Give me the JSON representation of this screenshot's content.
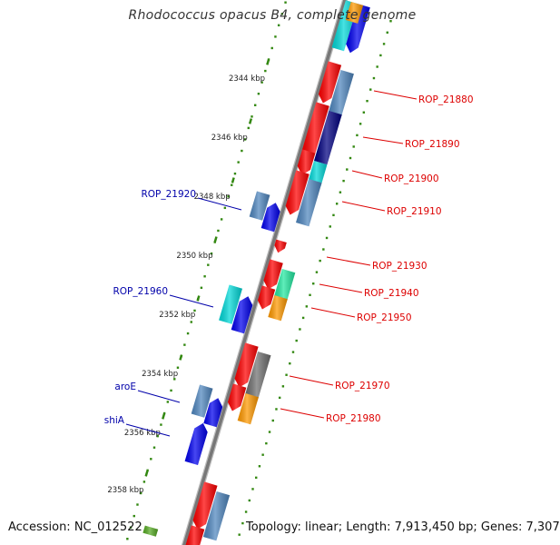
{
  "title": "Rhodococcus opacus B4, complete genome",
  "footer": {
    "accession": "Accession: NC_012522",
    "topology": "Topology: linear; Length: 7,913,450 bp; Genes: 7,307"
  },
  "scale": {
    "ticks": [
      {
        "label": "2344 kbp",
        "kbp": 2344
      },
      {
        "label": "2346 kbp",
        "kbp": 2346
      },
      {
        "label": "2348 kbp",
        "kbp": 2348
      },
      {
        "label": "2350 kbp",
        "kbp": 2350
      },
      {
        "label": "2352 kbp",
        "kbp": 2352
      },
      {
        "label": "2354 kbp",
        "kbp": 2354
      },
      {
        "label": "2356 kbp",
        "kbp": 2356
      },
      {
        "label": "2358 kbp",
        "kbp": 2358
      }
    ]
  },
  "gene_labels": {
    "right": [
      {
        "label": "ROP_21880"
      },
      {
        "label": "ROP_21890"
      },
      {
        "label": "ROP_21900"
      },
      {
        "label": "ROP_21910"
      },
      {
        "label": "ROP_21930"
      },
      {
        "label": "ROP_21940"
      },
      {
        "label": "ROP_21950"
      },
      {
        "label": "ROP_21970"
      },
      {
        "label": "ROP_21980"
      }
    ],
    "left": [
      {
        "label": "ROP_21920"
      },
      {
        "label": "ROP_21960"
      },
      {
        "label": "aroE"
      },
      {
        "label": "shiA"
      }
    ]
  },
  "colors": {
    "right_label": "#dd0000",
    "left_label": "#0000aa",
    "red": "#ff0000",
    "blue": "#0000ee",
    "steelblue": "#4f86be",
    "navy": "#000080",
    "cyan": "#00d8d8",
    "springgreen": "#22e8a0",
    "orange": "#ff9900",
    "gray": "#707070",
    "olive": "#55aa22",
    "tick_green": "#338811",
    "axis_gray": "#888888"
  }
}
